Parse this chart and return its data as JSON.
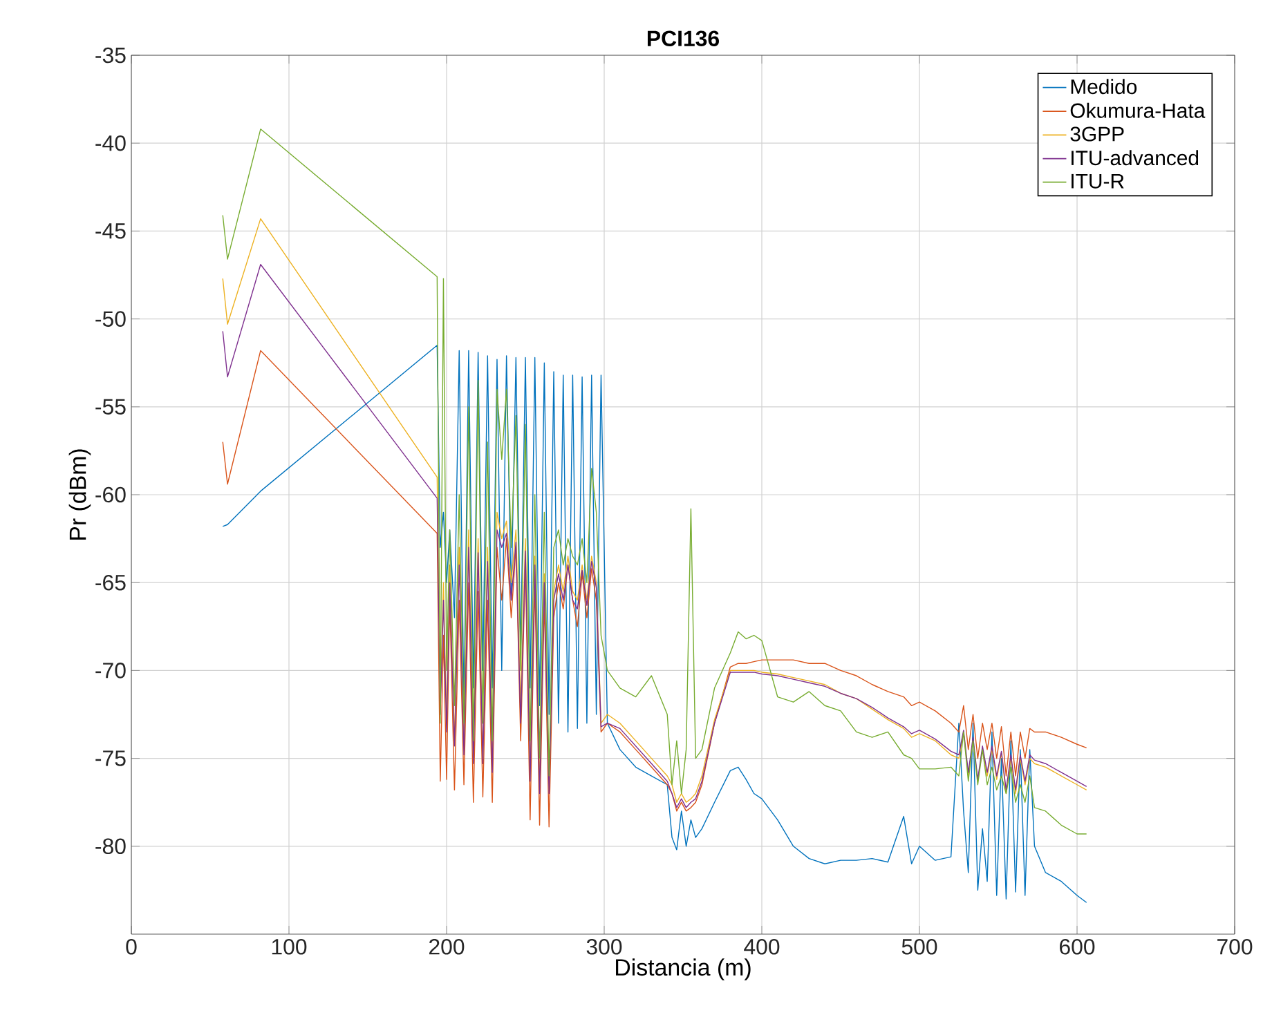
{
  "chart_data": {
    "type": "line",
    "title": "PCI136",
    "xlabel": "Distancia (m)",
    "ylabel": "Pr (dBm)",
    "xlim": [
      0,
      700
    ],
    "ylim": [
      -85,
      -35
    ],
    "xticks": [
      0,
      100,
      200,
      300,
      400,
      500,
      600,
      700
    ],
    "yticks": [
      -80,
      -75,
      -70,
      -65,
      -60,
      -55,
      -50,
      -45,
      -40,
      -35
    ],
    "grid": true,
    "legend": "top right",
    "x": [
      58,
      61,
      82,
      194,
      196,
      198,
      200,
      202,
      205,
      208,
      211,
      214,
      217,
      220,
      223,
      226,
      229,
      232,
      235,
      238,
      241,
      244,
      247,
      250,
      253,
      256,
      259,
      262,
      265,
      268,
      271,
      274,
      277,
      280,
      283,
      286,
      289,
      292,
      295,
      298,
      302,
      310,
      320,
      330,
      340,
      343,
      346,
      349,
      352,
      355,
      358,
      362,
      370,
      380,
      385,
      390,
      395,
      400,
      410,
      420,
      430,
      440,
      450,
      460,
      470,
      480,
      490,
      495,
      500,
      510,
      520,
      525,
      528,
      531,
      534,
      537,
      540,
      543,
      546,
      549,
      552,
      555,
      558,
      561,
      564,
      567,
      570,
      573,
      580,
      590,
      600,
      606
    ],
    "series": [
      {
        "name": "Medido",
        "color": "#0072bd",
        "values": [
          -61.8,
          -61.7,
          -59.8,
          -51.5,
          -63,
          -61,
          -65,
          -62,
          -67,
          -51.8,
          -72,
          -51.8,
          -71,
          -51.9,
          -70,
          -52.1,
          -71,
          -52.3,
          -70,
          -52.1,
          -66,
          -52.2,
          -69,
          -52.2,
          -71,
          -52.2,
          -72,
          -52.5,
          -72.5,
          -53,
          -73,
          -53.2,
          -73.5,
          -53.2,
          -73.3,
          -53.3,
          -73,
          -53.2,
          -72.5,
          -53.2,
          -73,
          -74.5,
          -75.5,
          -76,
          -76.5,
          -79.5,
          -80.2,
          -78,
          -80,
          -78.5,
          -79.5,
          -79,
          -77.5,
          -75.7,
          -75.5,
          -76.2,
          -77,
          -77.3,
          -78.5,
          -80,
          -80.7,
          -81,
          -80.8,
          -80.8,
          -80.7,
          -80.9,
          -78.3,
          -81,
          -80,
          -80.8,
          -80.6,
          -73,
          -78,
          -81.5,
          -73,
          -82.5,
          -79,
          -82,
          -73.5,
          -82.8,
          -75,
          -83,
          -74,
          -82.6,
          -74.5,
          -82.8,
          -74.5,
          -80,
          -81.5,
          -82,
          -82.8,
          -83.2
        ]
      },
      {
        "name": "Okumura-Hata",
        "color": "#d95319",
        "values": [
          -57,
          -59.4,
          -51.8,
          -62.2,
          -76.3,
          -68,
          -76.2,
          -66,
          -76.8,
          -66,
          -76.5,
          -65,
          -77.5,
          -65.5,
          -77.2,
          -66,
          -77.5,
          -63,
          -66,
          -62.5,
          -67,
          -63,
          -74,
          -64,
          -78.5,
          -65,
          -78.8,
          -66,
          -78.9,
          -67,
          -65,
          -66.5,
          -64,
          -66,
          -67.5,
          -64.5,
          -67,
          -64.2,
          -66,
          -73.5,
          -73,
          -73.5,
          -74.5,
          -75.5,
          -76.5,
          -77,
          -78,
          -77.5,
          -78,
          -77.8,
          -77.5,
          -76.5,
          -73,
          -69.8,
          -69.6,
          -69.6,
          -69.5,
          -69.4,
          -69.4,
          -69.4,
          -69.6,
          -69.6,
          -70,
          -70.3,
          -70.8,
          -71.2,
          -71.5,
          -72,
          -71.8,
          -72.3,
          -73,
          -73.5,
          -72,
          -74.5,
          -72.5,
          -75,
          -73,
          -74.5,
          -73,
          -75,
          -73.2,
          -76,
          -73.5,
          -76,
          -73.5,
          -75,
          -73.3,
          -73.5,
          -73.5,
          -73.8,
          -74.2,
          -74.4
        ]
      },
      {
        "name": "3GPP",
        "color": "#edb120",
        "values": [
          -47.7,
          -50.3,
          -44.3,
          -59,
          -72,
          -65,
          -73,
          -64,
          -74,
          -63,
          -74.5,
          -62,
          -75,
          -62.5,
          -75,
          -63,
          -75.5,
          -61,
          -62.5,
          -61.5,
          -65,
          -62,
          -72,
          -62.5,
          -76,
          -63.5,
          -76.5,
          -64.5,
          -76.8,
          -65.5,
          -64,
          -65.5,
          -63.5,
          -65.5,
          -66,
          -64,
          -66,
          -63.5,
          -65,
          -73,
          -72.5,
          -73,
          -74,
          -75,
          -76,
          -76.5,
          -77.5,
          -77,
          -77.5,
          -77.3,
          -77,
          -76,
          -72.8,
          -70,
          -70,
          -70,
          -70,
          -70.1,
          -70.2,
          -70.4,
          -70.6,
          -70.8,
          -71.3,
          -71.6,
          -72.2,
          -72.8,
          -73.3,
          -73.8,
          -73.6,
          -74,
          -74.8,
          -75,
          -73.5,
          -76,
          -74,
          -76.3,
          -74.5,
          -76,
          -74.5,
          -76.2,
          -74.7,
          -77,
          -75,
          -77,
          -75,
          -76.5,
          -75,
          -75.3,
          -75.5,
          -76,
          -76.5,
          -76.8
        ]
      },
      {
        "name": "ITU-advanced",
        "color": "#7e2f8e",
        "values": [
          -50.7,
          -53.3,
          -46.9,
          -60.2,
          -72.5,
          -66,
          -73.5,
          -65,
          -74.3,
          -64,
          -74.8,
          -63,
          -75.3,
          -63.3,
          -75.3,
          -63.8,
          -75.8,
          -62,
          -63,
          -62.2,
          -66,
          -62.7,
          -73,
          -63.2,
          -76.3,
          -64,
          -77,
          -65,
          -77,
          -66,
          -64.5,
          -66,
          -64,
          -66,
          -66.5,
          -64.3,
          -66.3,
          -63.8,
          -65.3,
          -73.2,
          -73,
          -73.3,
          -74.3,
          -75.3,
          -76.3,
          -77,
          -77.8,
          -77.3,
          -77.8,
          -77.5,
          -77.3,
          -76.3,
          -73,
          -70.1,
          -70.1,
          -70.1,
          -70.1,
          -70.2,
          -70.3,
          -70.5,
          -70.7,
          -70.9,
          -71.3,
          -71.6,
          -72.1,
          -72.7,
          -73.2,
          -73.6,
          -73.4,
          -73.9,
          -74.6,
          -74.8,
          -73.4,
          -75.8,
          -73.8,
          -76.2,
          -74.3,
          -75.8,
          -74.3,
          -76,
          -74.6,
          -76.8,
          -74.8,
          -76.8,
          -74.8,
          -76.3,
          -74.8,
          -75.1,
          -75.3,
          -75.8,
          -76.3,
          -76.6
        ]
      },
      {
        "name": "ITU-R",
        "color": "#77ac30",
        "values": [
          -44.1,
          -46.6,
          -39.2,
          -47.6,
          -73,
          -47.7,
          -70,
          -62,
          -72,
          -60,
          -73,
          -55,
          -74,
          -53.5,
          -73,
          -57,
          -74,
          -54,
          -58,
          -54,
          -63,
          -55.5,
          -70,
          -56,
          -74,
          -60,
          -75,
          -61,
          -76,
          -63,
          -62,
          -64,
          -62.5,
          -63.5,
          -64,
          -62.5,
          -65,
          -58.5,
          -61,
          -68,
          -70,
          -71,
          -71.5,
          -70.3,
          -72.5,
          -76.5,
          -74,
          -77,
          -74.5,
          -60.8,
          -75,
          -74.5,
          -71,
          -69,
          -67.8,
          -68.2,
          -68,
          -68.3,
          -71.5,
          -71.8,
          -71.2,
          -72,
          -72.3,
          -73.5,
          -73.8,
          -73.5,
          -74.8,
          -75,
          -75.6,
          -75.6,
          -75.5,
          -76,
          -73.5,
          -76.3,
          -74,
          -76.5,
          -74.5,
          -76.5,
          -75.5,
          -76.8,
          -76,
          -77,
          -75.5,
          -77.5,
          -76.5,
          -77.5,
          -76,
          -77.8,
          -78,
          -78.8,
          -79.3,
          -79.3
        ]
      }
    ]
  }
}
